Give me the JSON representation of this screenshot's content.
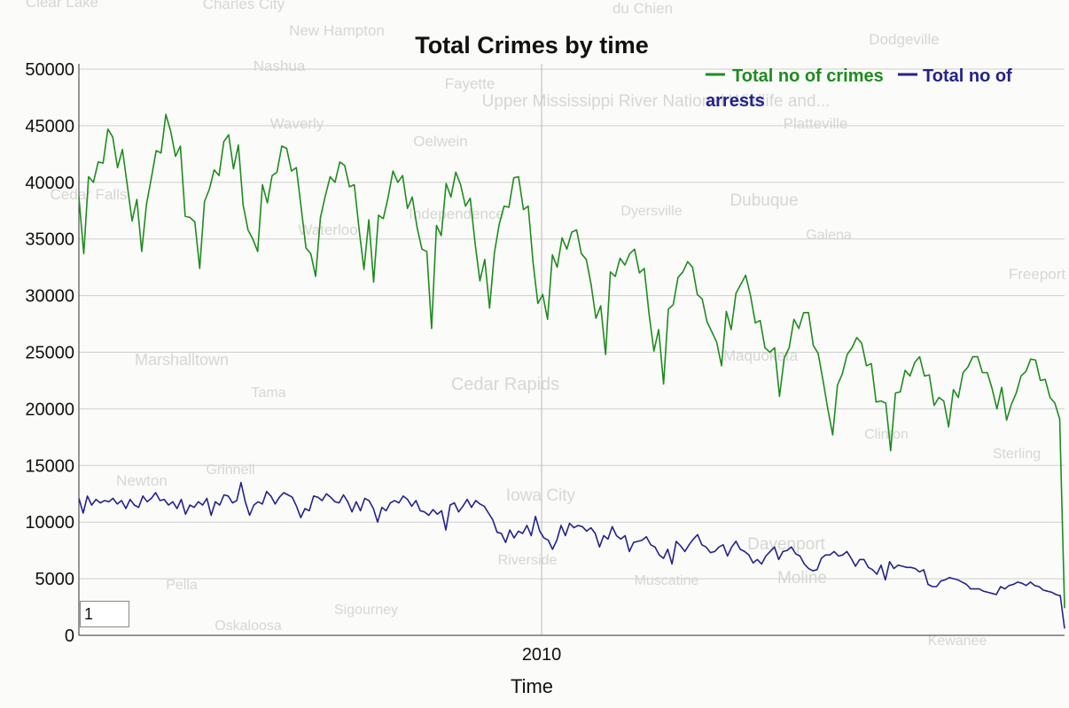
{
  "map_labels": [
    "Clear Lake",
    "Charles City",
    "New Hampton",
    "du Chien",
    "Dodgeville",
    "Nashua",
    "Fayette",
    "Upper Mississippi River National Wildlife and...",
    "Waverly",
    "Oelwein",
    "Platteville",
    "Cedar Falls",
    "Dyersville",
    "Dubuque",
    "Independence",
    "Galena",
    "Freeport",
    "Waterloo",
    "Marshalltown",
    "Tama",
    "Cedar Rapids",
    "Maquoketa",
    "Clinton",
    "Sterling",
    "Grinnell",
    "Newton",
    "Iowa City",
    "Davenport",
    "Riverside",
    "Moline",
    "Muscatine",
    "Pella",
    "Sigourney",
    "Oskaloosa",
    "Kewanee"
  ],
  "input": {
    "value": "1"
  },
  "chart_data": {
    "type": "line",
    "title": "Total Crimes by time",
    "xlabel": "Time",
    "ylabel": "",
    "ylim": [
      0,
      50000
    ],
    "yticks": [
      "0",
      "5000",
      "10000",
      "15000",
      "20000",
      "25000",
      "30000",
      "35000",
      "40000",
      "45000",
      "50000"
    ],
    "xticks": [
      {
        "value": 2010,
        "label": "2010"
      }
    ],
    "xlim": [
      2001.0,
      2020.17
    ],
    "grid": true,
    "legend": "top-right",
    "series": [
      {
        "name": "Total no of crimes",
        "color": "#1e8c1e",
        "x_start": 2001.0,
        "x_step": 0.08333,
        "values": [
          38700,
          33700,
          40500,
          40000,
          41800,
          41700,
          44700,
          44000,
          41300,
          42900,
          39800,
          36600,
          38500,
          33900,
          38100,
          40400,
          42800,
          42600,
          46000,
          44500,
          42300,
          43200,
          37000,
          36900,
          36500,
          32400,
          38300,
          39400,
          41100,
          40600,
          43600,
          44200,
          41200,
          43300,
          38000,
          35800,
          35000,
          33900,
          39800,
          38200,
          40600,
          40900,
          43200,
          43000,
          41000,
          41300,
          37800,
          34200,
          33700,
          31700,
          36900,
          38800,
          40500,
          40000,
          41800,
          41500,
          39600,
          39800,
          35800,
          32300,
          36700,
          31200,
          37100,
          36800,
          38700,
          41000,
          40000,
          40600,
          37700,
          38700,
          36000,
          34100,
          33900,
          27100,
          36200,
          35300,
          39900,
          38700,
          40900,
          39800,
          37900,
          38600,
          34600,
          31300,
          33200,
          28900,
          33800,
          36300,
          37900,
          37800,
          40400,
          40500,
          37600,
          37900,
          32900,
          29300,
          30100,
          27900,
          33600,
          32500,
          35100,
          34100,
          35600,
          35800,
          33700,
          33200,
          31000,
          28000,
          29100,
          24800,
          32100,
          31700,
          33300,
          32700,
          33700,
          34100,
          32000,
          32400,
          28400,
          25100,
          27000,
          22200,
          28800,
          29200,
          31600,
          32100,
          33000,
          32500,
          30100,
          29700,
          27700,
          26800,
          25900,
          23800,
          28600,
          27000,
          30200,
          31000,
          31800,
          30000,
          27600,
          27800,
          25400,
          25000,
          25400,
          21100,
          24500,
          25400,
          27900,
          27100,
          28500,
          28500,
          25600,
          24900,
          22500,
          20000,
          17700,
          22100,
          23100,
          24800,
          25400,
          26300,
          25800,
          23800,
          24000,
          20600,
          20700,
          20500,
          16300,
          21400,
          21500,
          23400,
          22900,
          24100,
          24600,
          22900,
          23000,
          20300,
          21000,
          20700,
          18400,
          21700,
          21000,
          23200,
          23700,
          24600,
          24600,
          23200,
          23200,
          21800,
          20000,
          21900,
          19000,
          20400,
          21400,
          22900,
          23300,
          24400,
          24300,
          22500,
          22600,
          21000,
          20500,
          19100,
          2400
        ]
      },
      {
        "name": "Total no of arrests",
        "color": "#23238c",
        "x_start": 2001.0,
        "x_step": 0.08333,
        "values": [
          12100,
          10800,
          12300,
          11500,
          12000,
          11700,
          11900,
          11800,
          12100,
          11600,
          11900,
          11200,
          12000,
          11500,
          11300,
          12300,
          11800,
          12100,
          12600,
          11900,
          12000,
          11500,
          11800,
          11200,
          12000,
          10700,
          11500,
          11300,
          11800,
          11500,
          12100,
          10600,
          11800,
          11500,
          12400,
          12300,
          11700,
          11900,
          13500,
          11800,
          10600,
          11500,
          11800,
          11600,
          12700,
          12300,
          11600,
          12200,
          12600,
          12400,
          12200,
          11400,
          10400,
          11200,
          11000,
          12300,
          12200,
          11900,
          12500,
          12200,
          11800,
          11700,
          12400,
          11800,
          10900,
          11800,
          11000,
          12100,
          11900,
          11200,
          10000,
          11300,
          11000,
          11700,
          11900,
          11700,
          12300,
          12000,
          11400,
          11900,
          11000,
          10900,
          10600,
          11100,
          10700,
          11000,
          9300,
          11500,
          11700,
          10900,
          11400,
          12000,
          11300,
          11900,
          11600,
          11400,
          10800,
          10200,
          9100,
          9000,
          8200,
          9300,
          8600,
          9200,
          9000,
          9700,
          8800,
          10500,
          9200,
          8600,
          8400,
          7600,
          8400,
          9700,
          8800,
          9900,
          9500,
          9700,
          9600,
          9200,
          9500,
          9000,
          7800,
          8800,
          8500,
          9600,
          8800,
          8500,
          8800,
          7400,
          8200,
          8300,
          8400,
          8700,
          8000,
          7800,
          7100,
          6800,
          7600,
          6300,
          8300,
          7900,
          7400,
          8000,
          8500,
          8900,
          8000,
          7800,
          7300,
          7400,
          7800,
          8000,
          7000,
          7800,
          8300,
          7600,
          7400,
          7100,
          6400,
          6700,
          6300,
          7000,
          7400,
          7800,
          6700,
          7400,
          7500,
          7800,
          7200,
          7000,
          6300,
          5900,
          5700,
          5800,
          6800,
          7100,
          7100,
          7400,
          7000,
          7100,
          7400,
          6800,
          6100,
          6700,
          6700,
          6000,
          5800,
          5400,
          6200,
          4900,
          6500,
          5900,
          6200,
          6100,
          6000,
          6000,
          5900,
          5600,
          5800,
          4500,
          4300,
          4300,
          4800,
          4900,
          5100,
          5000,
          4900,
          4700,
          4500,
          4100,
          4100,
          4100,
          3900,
          3800,
          3700,
          3600,
          4300,
          4100,
          4400,
          4500,
          4700,
          4600,
          4400,
          4700,
          4400,
          4300,
          4000,
          3900,
          3800,
          3600,
          3500,
          600
        ]
      }
    ]
  }
}
